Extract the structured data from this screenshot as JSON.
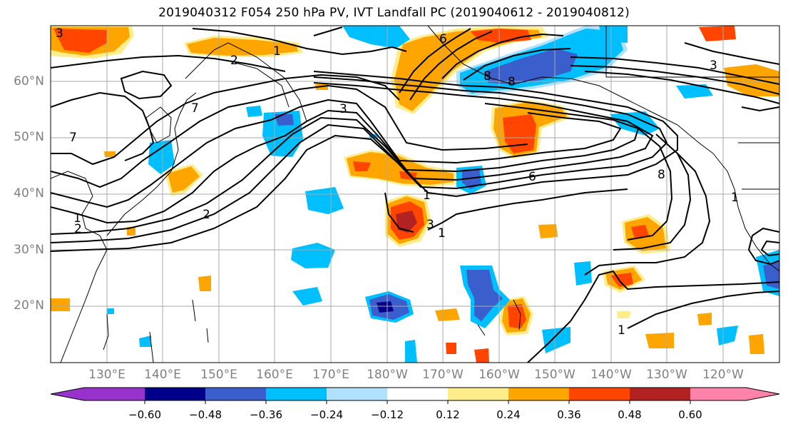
{
  "title": "2019040312 F054 250 hPa PV, IVT Landfall PC (2019040612 - 2019040812)",
  "map": {
    "lat_labels": [
      "60°N",
      "50°N",
      "40°N",
      "30°N",
      "20°N"
    ],
    "lon_labels": [
      "130°E",
      "140°E",
      "150°E",
      "160°E",
      "170°E",
      "180°W",
      "170°W",
      "160°W",
      "150°W",
      "140°W",
      "130°W",
      "120°W"
    ],
    "pv_contour_labels": [
      "1",
      "2",
      "3",
      "6",
      "7",
      "8",
      "1",
      "2",
      "3",
      "6",
      "8",
      "1",
      "3",
      "1",
      "1",
      "1",
      "2",
      "3",
      "7",
      "8"
    ]
  },
  "colorbar": {
    "colors": [
      "#9932CC",
      "#00008B",
      "#3A5FCD",
      "#00BFFF",
      "#B0E2FF",
      "#FFFFFF",
      "#FFEC8B",
      "#FFA500",
      "#FF4500",
      "#B22222",
      "#FF82AB"
    ],
    "tick_labels": [
      "−0.60",
      "−0.48",
      "−0.36",
      "−0.24",
      "−0.12",
      "0.12",
      "0.24",
      "0.36",
      "0.48",
      "0.60"
    ]
  }
}
